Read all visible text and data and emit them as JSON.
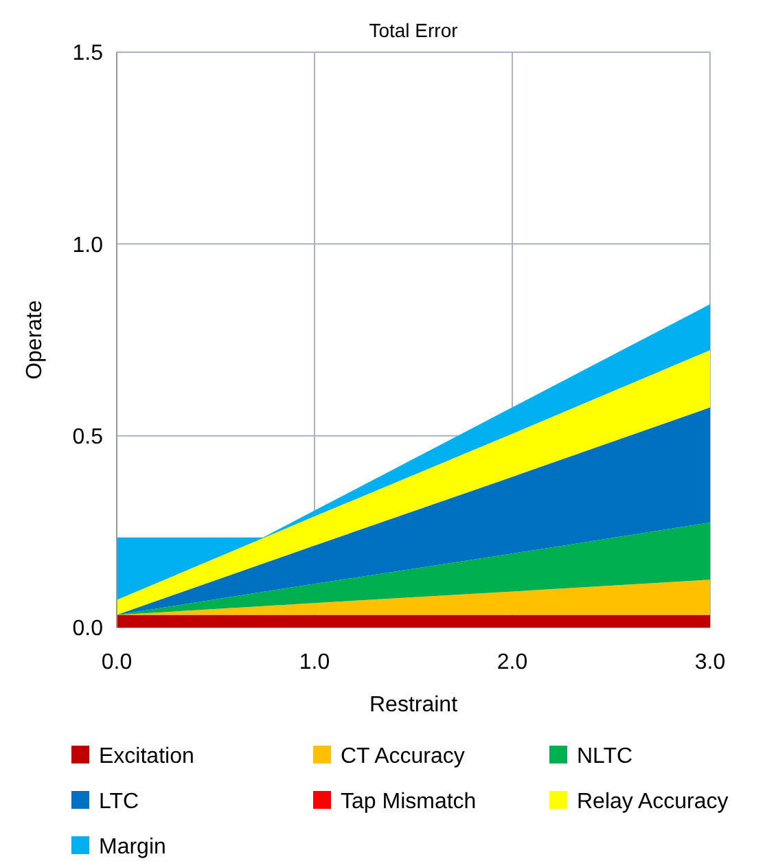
{
  "chart_data": {
    "type": "area",
    "stacked": true,
    "title": "Total Error",
    "xlabel": "Restraint",
    "ylabel": "Operate",
    "x": [
      0,
      0.74,
      1,
      2,
      3
    ],
    "xlim": [
      0,
      3
    ],
    "xticks": [
      {
        "value": 0,
        "label": "0.0"
      },
      {
        "value": 1,
        "label": "1.0"
      },
      {
        "value": 2,
        "label": "2.0"
      },
      {
        "value": 3,
        "label": "3.0"
      }
    ],
    "ylim": [
      0,
      1.5
    ],
    "yticks": [
      {
        "value": 0,
        "label": "0.0"
      },
      {
        "value": 0.5,
        "label": "0.5"
      },
      {
        "value": 1,
        "label": "1.0"
      },
      {
        "value": 1.5,
        "label": "1.5"
      }
    ],
    "grid": true,
    "legend": "bottom",
    "series": [
      {
        "name": "Excitation",
        "color": "#c00000",
        "values": [
          0.033,
          0.033,
          0.033,
          0.033,
          0.033
        ]
      },
      {
        "name": "CT Accuracy",
        "color": "#ffc000",
        "values": [
          0,
          0.023,
          0.031,
          0.061,
          0.092
        ]
      },
      {
        "name": "NLTC",
        "color": "#00b050",
        "values": [
          0,
          0.037,
          0.05,
          0.099,
          0.149
        ]
      },
      {
        "name": "LTC",
        "color": "#0070c0",
        "values": [
          0,
          0.074,
          0.1,
          0.2,
          0.3
        ]
      },
      {
        "name": "Tap Mismatch",
        "color": "#ff0000",
        "values": [
          null,
          null,
          null,
          null,
          null
        ]
      },
      {
        "name": "Relay Accuracy",
        "color": "#ffff00",
        "values": [
          0.039,
          0.066,
          0.076,
          0.112,
          0.149
        ]
      },
      {
        "name": "Margin",
        "color": "#00b0f0",
        "values": [
          0.163,
          0.002,
          0.015,
          0.069,
          0.12
        ]
      }
    ]
  }
}
